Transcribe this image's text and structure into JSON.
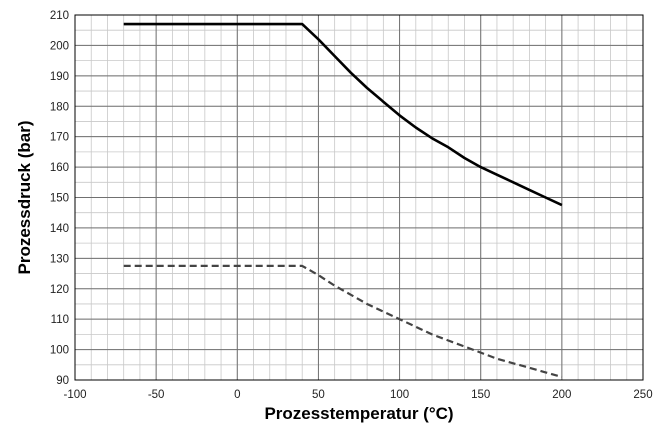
{
  "chart_data": {
    "type": "line",
    "xlabel": "Prozesstemperatur (°C)",
    "ylabel": "Prozessdruck (bar)",
    "xlim": [
      -100,
      250
    ],
    "ylim": [
      90,
      210
    ],
    "x_ticks": [
      -100,
      -50,
      0,
      50,
      100,
      150,
      200,
      250
    ],
    "y_ticks": [
      90,
      100,
      110,
      120,
      130,
      140,
      150,
      160,
      170,
      180,
      190,
      200,
      210
    ],
    "x_ticks_text": [
      "-100",
      "-50",
      "0",
      "50",
      "100",
      "150",
      "200",
      "250"
    ],
    "y_ticks_text": [
      "90",
      "100",
      "110",
      "120",
      "130",
      "140",
      "150",
      "160",
      "170",
      "180",
      "190",
      "200",
      "210"
    ],
    "grid": "major and minor",
    "series": [
      {
        "style": "solid",
        "color": "#000000",
        "points": [
          [
            -70,
            207
          ],
          [
            40,
            207
          ],
          [
            50,
            202
          ],
          [
            60,
            196.5
          ],
          [
            70,
            191
          ],
          [
            80,
            186
          ],
          [
            90,
            181.5
          ],
          [
            100,
            177
          ],
          [
            110,
            173
          ],
          [
            120,
            169.5
          ],
          [
            130,
            166.5
          ],
          [
            140,
            163
          ],
          [
            150,
            160
          ],
          [
            160,
            157.5
          ],
          [
            170,
            155
          ],
          [
            180,
            152.5
          ],
          [
            190,
            150
          ],
          [
            200,
            147.5
          ]
        ]
      },
      {
        "style": "dashed",
        "color": "#444444",
        "points": [
          [
            -70,
            127.5
          ],
          [
            40,
            127.5
          ],
          [
            50,
            124.5
          ],
          [
            60,
            121
          ],
          [
            70,
            118
          ],
          [
            80,
            115
          ],
          [
            90,
            112.5
          ],
          [
            100,
            110
          ],
          [
            110,
            107.5
          ],
          [
            120,
            105
          ],
          [
            130,
            103
          ],
          [
            140,
            101
          ],
          [
            150,
            99
          ],
          [
            160,
            97
          ],
          [
            170,
            95.5
          ],
          [
            180,
            94
          ],
          [
            190,
            92.5
          ],
          [
            200,
            91
          ]
        ]
      }
    ]
  }
}
